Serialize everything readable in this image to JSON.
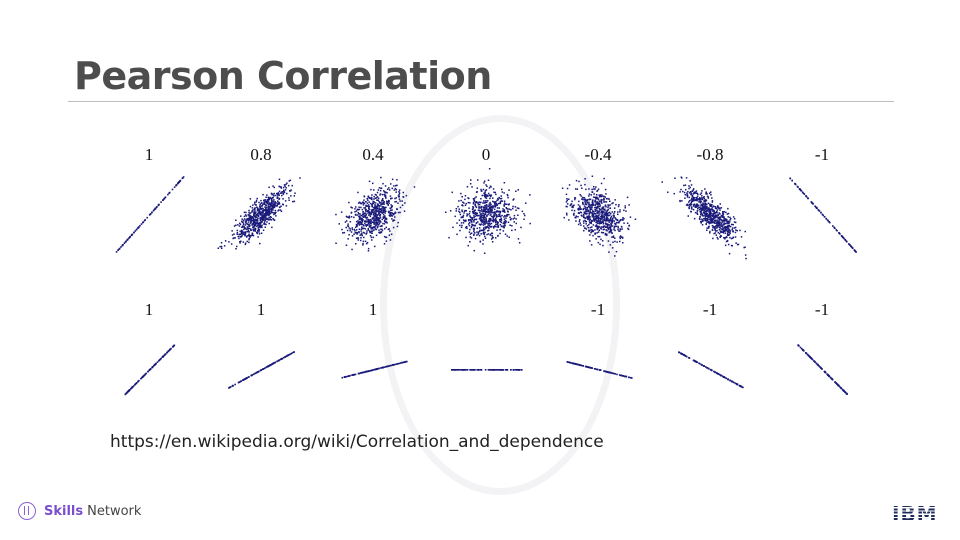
{
  "title": "Pearson Correlation",
  "source_text": "https://en.wikipedia.org/wiki/Correlation_and_dependence",
  "footer": {
    "brand_strong": "Skills",
    "brand_rest": "Network",
    "logo": "IBM"
  },
  "colors": {
    "points": "#1a1a7a",
    "title": "#4d4d4d",
    "accent": "#7a4fcf"
  },
  "chart_data": {
    "type": "scatter",
    "rows": [
      {
        "kind": "noisy",
        "panels": [
          {
            "label": "1",
            "r": 1
          },
          {
            "label": "0.8",
            "r": 0.8
          },
          {
            "label": "0.4",
            "r": 0.4
          },
          {
            "label": "0",
            "r": 0
          },
          {
            "label": "-0.4",
            "r": -0.4
          },
          {
            "label": "-0.8",
            "r": -0.8
          },
          {
            "label": "-1",
            "r": -1
          }
        ]
      },
      {
        "kind": "exact-line",
        "panels": [
          {
            "label": "1",
            "slope": 1.0
          },
          {
            "label": "1",
            "slope": 0.55
          },
          {
            "label": "1",
            "slope": 0.25
          },
          {
            "label": "",
            "slope": 0
          },
          {
            "label": "-1",
            "slope": -0.25
          },
          {
            "label": "-1",
            "slope": -0.55
          },
          {
            "label": "-1",
            "slope": -1.0
          }
        ]
      }
    ]
  }
}
